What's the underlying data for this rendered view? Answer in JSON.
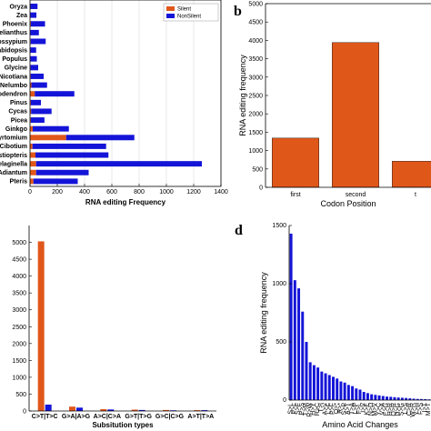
{
  "colors": {
    "silent": "#e0571a",
    "nonsilent": "#1414d8",
    "axis": "#000000",
    "grid": "#d9d9d9"
  },
  "chart_data": [
    {
      "panel": "a",
      "type": "bar",
      "orientation": "horizontal",
      "stacked": true,
      "xlabel": "RNA editing Frequency",
      "ylabel": "",
      "xlim": [
        0,
        1400
      ],
      "xticks": [
        0,
        200,
        400,
        600,
        800,
        1000,
        1200,
        1400
      ],
      "grid": true,
      "legend": "top-right",
      "categories": [
        "Oryza",
        "Zea",
        "Phoenix",
        "Helianthus",
        "Gossypium",
        "rabidopsis",
        "Populus",
        "Glycine",
        "Nicotiana",
        "Nelumbo",
        "riodendron",
        "Pinus",
        "Cycas",
        "Picea",
        "Ginkgo",
        "Cyrtomium",
        "Cibotium",
        "listiopteris",
        "Selaginella",
        "Adiantum",
        "Pteris"
      ],
      "series": [
        {
          "name": "Silent",
          "values": [
            3,
            2,
            6,
            2,
            5,
            3,
            3,
            4,
            5,
            10,
            35,
            6,
            8,
            6,
            20,
            265,
            18,
            40,
            45,
            45,
            25
          ]
        },
        {
          "name": "NonSilent",
          "values": [
            52,
            45,
            104,
            63,
            110,
            42,
            47,
            56,
            95,
            115,
            290,
            74,
            150,
            100,
            265,
            500,
            540,
            535,
            1215,
            385,
            325
          ]
        }
      ]
    },
    {
      "panel": "b",
      "type": "bar",
      "xlabel": "Codon Position",
      "ylabel": "RNA editing frequency",
      "ylim": [
        0,
        5000
      ],
      "yticks": [
        0,
        500,
        1000,
        1500,
        2000,
        2500,
        3000,
        3500,
        4000,
        4500,
        5000
      ],
      "categories": [
        "first",
        "second",
        "t"
      ],
      "values": [
        1340,
        3940,
        710
      ],
      "grid": false
    },
    {
      "panel": "c",
      "type": "bar",
      "xlabel": "Subsitution types",
      "ylabel": "",
      "ylim": [
        0,
        5500
      ],
      "yticks": [
        0,
        500,
        1000,
        1500,
        2000,
        2500,
        3000,
        3500,
        4000,
        4500,
        5000
      ],
      "categories": [
        "C>T|T>C",
        "G>A|A>G",
        "A>C|C>A",
        "G>T|T>G",
        "G>C|C>G",
        "A>T|T>A"
      ],
      "series": [
        {
          "name": "",
          "values": [
            5030,
            130,
            55,
            40,
            30,
            25
          ]
        },
        {
          "name": "",
          "values": [
            190,
            100,
            45,
            30,
            20,
            25
          ]
        }
      ],
      "grid": false
    },
    {
      "panel": "d",
      "type": "bar",
      "xlabel": "Amino Acid Changes",
      "ylabel": "RNA editing frequency",
      "ylim": [
        0,
        1500
      ],
      "yticks": [
        0,
        500,
        1000,
        1500
      ],
      "categories": [
        "S>L",
        "P>L",
        "S>F",
        "P>S",
        "T>M",
        "R>W",
        "H>Y",
        "R>C",
        "T>I",
        "A>V",
        "L>F",
        "P>F",
        "Q>*",
        "R>*",
        "S>P",
        "A>T",
        "T>A",
        "L>P",
        "F>L",
        "I>V",
        "K>E",
        "N>D",
        "M>V",
        "Y>C",
        "V>A",
        "E>G",
        "H>R",
        "Q>R",
        "D>G",
        "S>G",
        "L>S",
        "C>R",
        "W>R",
        "Y>H",
        "F>S",
        "I>T",
        "M>T"
      ],
      "values": [
        1430,
        1030,
        960,
        760,
        500,
        325,
        300,
        280,
        245,
        230,
        215,
        200,
        185,
        160,
        150,
        130,
        120,
        100,
        90,
        70,
        60,
        50,
        45,
        40,
        35,
        30,
        28,
        25,
        22,
        20,
        18,
        15,
        12,
        10,
        9,
        8,
        6
      ],
      "grid": false
    }
  ],
  "panel_labels": {
    "b": "b",
    "d": "d"
  }
}
